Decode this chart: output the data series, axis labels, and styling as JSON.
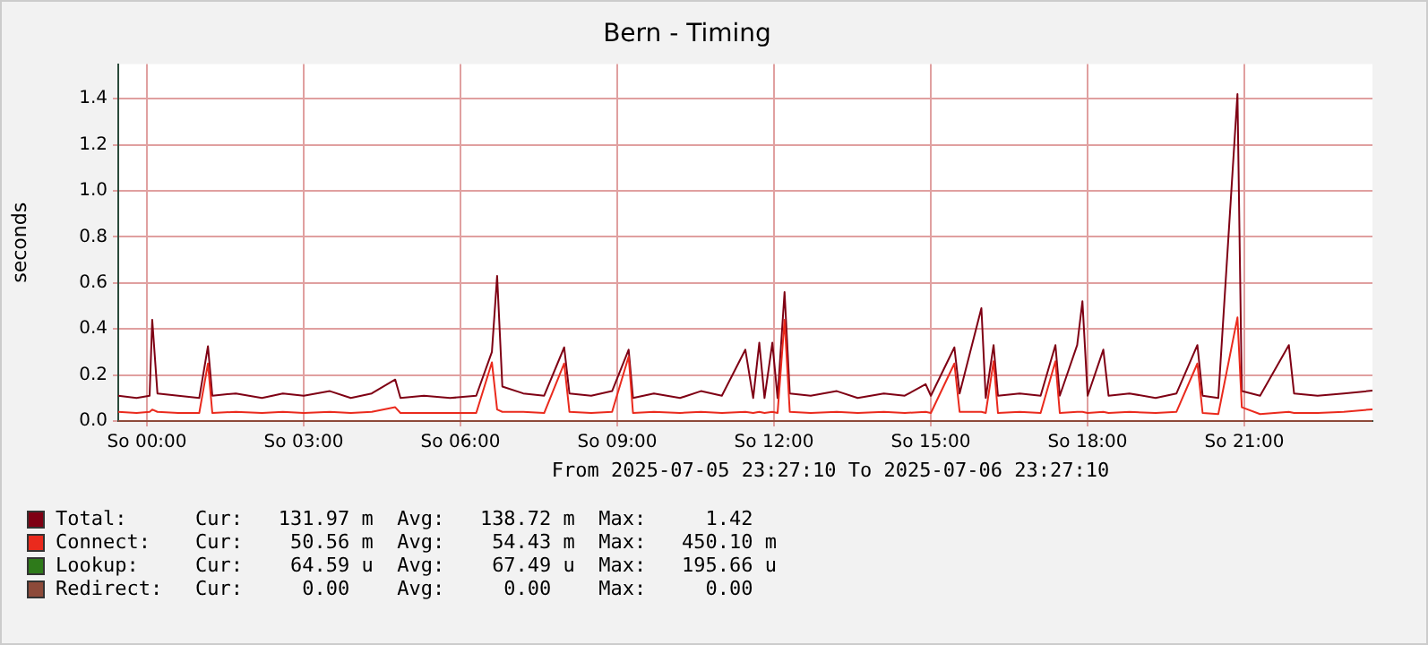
{
  "chart_data": {
    "type": "line",
    "title": "Bern - Timing",
    "ylabel": "seconds",
    "xlim": [
      "2025-07-05T23:27",
      "2025-07-06T23:27"
    ],
    "xticks": [
      {
        "value": "2025-07-06T00:00",
        "label": "So 00:00"
      },
      {
        "value": "2025-07-06T03:00",
        "label": "So 03:00"
      },
      {
        "value": "2025-07-06T06:00",
        "label": "So 06:00"
      },
      {
        "value": "2025-07-06T09:00",
        "label": "So 09:00"
      },
      {
        "value": "2025-07-06T12:00",
        "label": "So 12:00"
      },
      {
        "value": "2025-07-06T15:00",
        "label": "So 15:00"
      },
      {
        "value": "2025-07-06T18:00",
        "label": "So 18:00"
      },
      {
        "value": "2025-07-06T21:00",
        "label": "So 21:00"
      }
    ],
    "ylim": [
      0,
      1.55
    ],
    "yticks": [
      {
        "value": 0,
        "label": "0.0"
      },
      0.2,
      0.4,
      0.6,
      0.8,
      {
        "value": 1,
        "label": "1.0"
      },
      1.2,
      1.4
    ],
    "grid": true,
    "legend": "bottom",
    "marker": "none",
    "line_style": "solid",
    "x": [
      "2025-07-05T23:27",
      "2025-07-05T23:48",
      "2025-07-06T00:03",
      "2025-07-06T00:06",
      "2025-07-06T00:12",
      "2025-07-06T00:36",
      "2025-07-06T01:00",
      "2025-07-06T01:10",
      "2025-07-06T01:15",
      "2025-07-06T01:42",
      "2025-07-06T02:12",
      "2025-07-06T02:36",
      "2025-07-06T03:00",
      "2025-07-06T03:30",
      "2025-07-06T03:54",
      "2025-07-06T04:18",
      "2025-07-06T04:45",
      "2025-07-06T04:51",
      "2025-07-06T05:18",
      "2025-07-06T05:48",
      "2025-07-06T06:18",
      "2025-07-06T06:36",
      "2025-07-06T06:42",
      "2025-07-06T06:48",
      "2025-07-06T07:12",
      "2025-07-06T07:36",
      "2025-07-06T07:59",
      "2025-07-06T08:05",
      "2025-07-06T08:30",
      "2025-07-06T08:54",
      "2025-07-06T09:13",
      "2025-07-06T09:18",
      "2025-07-06T09:42",
      "2025-07-06T10:12",
      "2025-07-06T10:36",
      "2025-07-06T11:00",
      "2025-07-06T11:27",
      "2025-07-06T11:36",
      "2025-07-06T11:43",
      "2025-07-06T11:49",
      "2025-07-06T11:58",
      "2025-07-06T12:04",
      "2025-07-06T12:12",
      "2025-07-06T12:18",
      "2025-07-06T12:42",
      "2025-07-06T13:12",
      "2025-07-06T13:36",
      "2025-07-06T14:06",
      "2025-07-06T14:30",
      "2025-07-06T14:54",
      "2025-07-06T15:00",
      "2025-07-06T15:27",
      "2025-07-06T15:33",
      "2025-07-06T15:58",
      "2025-07-06T16:03",
      "2025-07-06T16:12",
      "2025-07-06T16:17",
      "2025-07-06T16:42",
      "2025-07-06T17:06",
      "2025-07-06T17:23",
      "2025-07-06T17:28",
      "2025-07-06T17:48",
      "2025-07-06T17:54",
      "2025-07-06T18:00",
      "2025-07-06T18:18",
      "2025-07-06T18:24",
      "2025-07-06T18:48",
      "2025-07-06T19:18",
      "2025-07-06T19:42",
      "2025-07-06T20:06",
      "2025-07-06T20:12",
      "2025-07-06T20:30",
      "2025-07-06T20:52",
      "2025-07-06T20:57",
      "2025-07-06T21:18",
      "2025-07-06T21:51",
      "2025-07-06T21:57",
      "2025-07-06T22:24",
      "2025-07-06T22:54",
      "2025-07-06T23:27"
    ],
    "series": [
      {
        "name": "Total:",
        "color": "#7f0014",
        "values": [
          0.11,
          0.1,
          0.11,
          0.44,
          0.12,
          0.11,
          0.1,
          0.325,
          0.11,
          0.12,
          0.1,
          0.12,
          0.11,
          0.13,
          0.1,
          0.12,
          0.18,
          0.1,
          0.11,
          0.1,
          0.11,
          0.3,
          0.63,
          0.15,
          0.12,
          0.11,
          0.32,
          0.12,
          0.11,
          0.13,
          0.31,
          0.1,
          0.12,
          0.1,
          0.13,
          0.11,
          0.31,
          0.1,
          0.34,
          0.1,
          0.34,
          0.1,
          0.56,
          0.12,
          0.11,
          0.13,
          0.1,
          0.12,
          0.11,
          0.16,
          0.11,
          0.32,
          0.12,
          0.49,
          0.1,
          0.33,
          0.11,
          0.12,
          0.11,
          0.33,
          0.11,
          0.33,
          0.52,
          0.11,
          0.31,
          0.11,
          0.12,
          0.1,
          0.12,
          0.33,
          0.11,
          0.1,
          1.42,
          0.13,
          0.11,
          0.33,
          0.12,
          0.11,
          0.12,
          0.132
        ]
      },
      {
        "name": "Connect:",
        "color": "#ea2a1d",
        "values": [
          0.04,
          0.035,
          0.04,
          0.05,
          0.04,
          0.035,
          0.035,
          0.25,
          0.035,
          0.04,
          0.035,
          0.04,
          0.035,
          0.04,
          0.035,
          0.04,
          0.06,
          0.035,
          0.035,
          0.035,
          0.035,
          0.255,
          0.05,
          0.04,
          0.04,
          0.035,
          0.25,
          0.04,
          0.035,
          0.04,
          0.28,
          0.035,
          0.04,
          0.035,
          0.04,
          0.035,
          0.04,
          0.035,
          0.04,
          0.035,
          0.04,
          0.035,
          0.44,
          0.04,
          0.035,
          0.04,
          0.035,
          0.04,
          0.035,
          0.04,
          0.035,
          0.25,
          0.04,
          0.04,
          0.035,
          0.26,
          0.035,
          0.04,
          0.035,
          0.26,
          0.035,
          0.04,
          0.04,
          0.035,
          0.04,
          0.035,
          0.04,
          0.035,
          0.04,
          0.25,
          0.035,
          0.03,
          0.45,
          0.06,
          0.03,
          0.04,
          0.035,
          0.035,
          0.04,
          0.051
        ]
      },
      {
        "name": "Lookup:",
        "color": "#2e7a1a",
        "values": [
          null,
          null,
          null,
          null,
          null,
          null,
          null,
          null,
          null,
          null,
          null,
          null,
          null,
          null,
          null,
          null,
          null,
          null,
          null,
          null,
          null,
          null,
          null,
          null,
          null,
          null,
          null,
          null,
          null,
          null,
          null,
          null,
          null,
          null,
          null,
          null,
          null,
          null,
          null,
          null,
          null,
          null,
          null,
          null,
          null,
          null,
          null,
          null,
          null,
          null,
          null,
          null,
          null,
          null,
          null,
          null,
          null,
          null,
          null,
          null,
          null,
          null,
          null,
          null,
          null,
          null,
          null,
          null,
          null,
          null,
          null,
          null,
          null,
          null,
          null,
          null,
          null,
          null,
          null,
          null
        ]
      },
      {
        "name": "Redirect:",
        "color": "#8d4a3a",
        "x": [
          "2025-07-05T23:27",
          "2025-07-06T23:27"
        ],
        "values": [
          0,
          0
        ]
      }
    ],
    "annotations": [
      "From 2025-07-05 23:27:10 To 2025-07-06 23:27:10",
      "Cur:   131.97 m  Avg:   138.72 m  Max:     1.42",
      "Cur:    50.56 m  Avg:    54.43 m  Max:   450.10 m",
      "Cur:    64.59 u  Avg:    67.49 u  Max:   195.66 u",
      "Cur:     0.00    Avg:     0.00    Max:     0.00"
    ]
  }
}
